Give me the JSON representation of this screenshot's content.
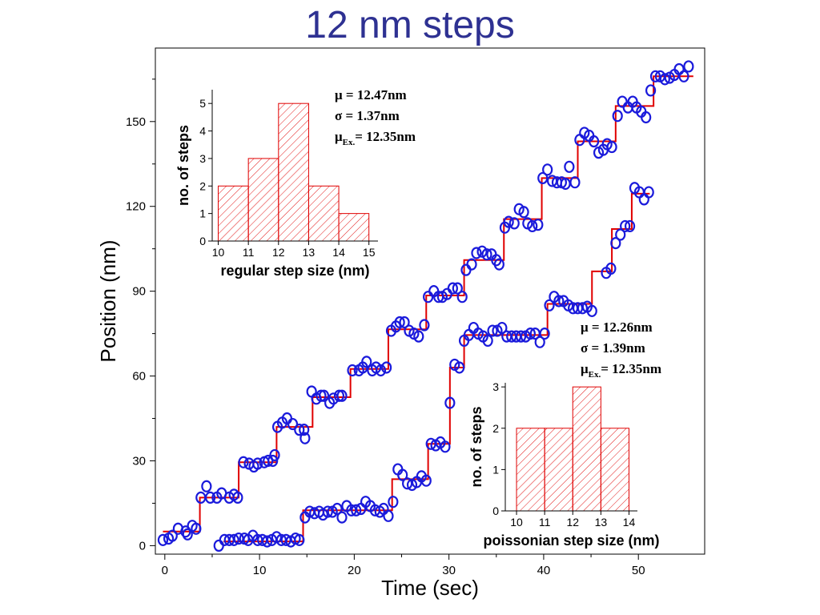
{
  "title": "12 nm steps",
  "main_chart": {
    "type": "scatter",
    "xlabel": "Time (sec)",
    "ylabel": "Position (nm)",
    "xlim": [
      -1,
      57
    ],
    "ylim": [
      -3,
      176
    ],
    "xticks": [
      0,
      10,
      20,
      30,
      40,
      50
    ],
    "yticks": [
      0,
      30,
      60,
      90,
      120,
      150
    ],
    "marker_color": "#1a1adb",
    "fit_color": "#e00000"
  },
  "chart_data": [
    {
      "type": "scatter",
      "xlabel": "Time (sec)",
      "ylabel": "Position (nm)",
      "series": [
        {
          "name": "regular",
          "points": [
            [
              -0.2,
              2
            ],
            [
              0.4,
              2.5
            ],
            [
              0.8,
              3.5
            ],
            [
              1.4,
              6
            ],
            [
              2.2,
              5
            ],
            [
              2.4,
              4
            ],
            [
              2.9,
              7
            ],
            [
              3.3,
              6
            ],
            [
              3.8,
              17
            ],
            [
              4.4,
              21
            ],
            [
              4.8,
              17
            ],
            [
              5.5,
              17
            ],
            [
              6,
              18.5
            ],
            [
              6.8,
              17
            ],
            [
              7.3,
              18
            ],
            [
              7.7,
              17
            ],
            [
              8.3,
              29.5
            ],
            [
              8.9,
              29
            ],
            [
              9.4,
              28
            ],
            [
              9.8,
              29
            ],
            [
              10.5,
              29.5
            ],
            [
              10.9,
              30
            ],
            [
              11.4,
              30
            ],
            [
              11.6,
              32
            ],
            [
              11.9,
              42
            ],
            [
              12.4,
              43.5
            ],
            [
              12.9,
              45
            ],
            [
              13.5,
              43
            ],
            [
              14.2,
              41
            ],
            [
              14.7,
              41
            ],
            [
              14.8,
              38
            ],
            [
              15.5,
              54.5
            ],
            [
              16,
              52
            ],
            [
              16.5,
              53
            ],
            [
              16.8,
              53
            ],
            [
              17.4,
              50.5
            ],
            [
              17.8,
              52
            ],
            [
              18.4,
              53
            ],
            [
              18.7,
              53
            ],
            [
              19.8,
              62
            ],
            [
              20.5,
              62
            ],
            [
              20.9,
              63
            ],
            [
              21.3,
              65
            ],
            [
              21.9,
              62
            ],
            [
              22.3,
              63
            ],
            [
              22.8,
              62
            ],
            [
              23.4,
              63
            ],
            [
              23.9,
              76
            ],
            [
              24.4,
              77.5
            ],
            [
              24.8,
              79
            ],
            [
              25.3,
              79
            ],
            [
              25.8,
              76
            ],
            [
              26.3,
              75
            ],
            [
              26.8,
              74
            ],
            [
              27.4,
              78
            ],
            [
              27.8,
              88
            ],
            [
              28.4,
              90
            ],
            [
              28.9,
              88
            ],
            [
              29.3,
              88
            ],
            [
              29.8,
              89
            ],
            [
              30.4,
              91
            ],
            [
              30.9,
              91
            ],
            [
              31.4,
              88
            ],
            [
              31.8,
              97.5
            ],
            [
              32.4,
              99.5
            ],
            [
              32.9,
              103.5
            ],
            [
              33.5,
              104
            ],
            [
              34,
              103
            ],
            [
              34.5,
              103
            ],
            [
              35,
              101
            ],
            [
              35.3,
              99.5
            ],
            [
              35.9,
              112.5
            ],
            [
              36.3,
              114.5
            ],
            [
              36.9,
              114
            ],
            [
              37.4,
              119
            ],
            [
              37.9,
              118
            ],
            [
              38.3,
              114
            ],
            [
              38.8,
              113
            ],
            [
              39.4,
              113.5
            ],
            [
              39.9,
              130
            ],
            [
              40.4,
              133
            ],
            [
              40.9,
              129
            ],
            [
              41.4,
              128.5
            ],
            [
              41.9,
              128.5
            ],
            [
              42.3,
              128
            ],
            [
              42.7,
              134
            ],
            [
              43.3,
              128.5
            ],
            [
              43.8,
              143.5
            ],
            [
              44.3,
              146
            ],
            [
              44.8,
              145
            ],
            [
              45.3,
              143
            ],
            [
              45.8,
              139
            ],
            [
              46.3,
              140
            ],
            [
              46.7,
              142
            ],
            [
              47.2,
              141
            ],
            [
              47.8,
              152
            ],
            [
              48.3,
              157
            ],
            [
              48.9,
              155
            ],
            [
              49.4,
              157
            ],
            [
              49.8,
              155
            ],
            [
              50.3,
              153.5
            ],
            [
              50.8,
              151.5
            ],
            [
              51.3,
              161
            ],
            [
              51.8,
              166
            ],
            [
              52.3,
              166
            ],
            [
              52.8,
              165
            ],
            [
              53.3,
              165.5
            ],
            [
              53.8,
              166.5
            ],
            [
              54.3,
              168.5
            ],
            [
              54.8,
              166
            ],
            [
              55.3,
              169.5
            ]
          ]
        },
        {
          "name": "poissonian",
          "points": [
            [
              5.7,
              0
            ],
            [
              6.3,
              2
            ],
            [
              6.8,
              2
            ],
            [
              7.3,
              2
            ],
            [
              7.8,
              2.5
            ],
            [
              8.4,
              2.5
            ],
            [
              8.8,
              2
            ],
            [
              9.3,
              3.5
            ],
            [
              9.8,
              2
            ],
            [
              10.3,
              2
            ],
            [
              10.8,
              1.5
            ],
            [
              11.3,
              2
            ],
            [
              11.8,
              3
            ],
            [
              12.3,
              2
            ],
            [
              12.8,
              2
            ],
            [
              13.3,
              1.5
            ],
            [
              13.8,
              2.5
            ],
            [
              14.2,
              2
            ],
            [
              14.8,
              10
            ],
            [
              15.3,
              12
            ],
            [
              15.8,
              11.5
            ],
            [
              16.3,
              12
            ],
            [
              16.7,
              11
            ],
            [
              17.2,
              12
            ],
            [
              17.7,
              12
            ],
            [
              18.2,
              13
            ],
            [
              18.7,
              10
            ],
            [
              19.2,
              14
            ],
            [
              19.7,
              12.5
            ],
            [
              20.2,
              12.5
            ],
            [
              20.7,
              13
            ],
            [
              21.2,
              15.5
            ],
            [
              21.7,
              14
            ],
            [
              22.2,
              12.5
            ],
            [
              22.7,
              12
            ],
            [
              23.1,
              13
            ],
            [
              23.6,
              10.5
            ],
            [
              24.1,
              15.5
            ],
            [
              24.6,
              27
            ],
            [
              25.1,
              25
            ],
            [
              25.6,
              22
            ],
            [
              26.1,
              21.5
            ],
            [
              26.6,
              22.5
            ],
            [
              27.1,
              24.5
            ],
            [
              27.6,
              23
            ],
            [
              28.1,
              36
            ],
            [
              28.6,
              35.5
            ],
            [
              29.1,
              36.5
            ],
            [
              29.6,
              35
            ],
            [
              30.1,
              50.5
            ],
            [
              30.6,
              64
            ],
            [
              31.1,
              63
            ],
            [
              31.6,
              72.5
            ],
            [
              32.1,
              74.5
            ],
            [
              32.6,
              77
            ],
            [
              33.1,
              75
            ],
            [
              33.6,
              74
            ],
            [
              34.1,
              72.5
            ],
            [
              34.6,
              76
            ],
            [
              35.1,
              76
            ],
            [
              35.6,
              77
            ],
            [
              36.1,
              74
            ],
            [
              36.6,
              74
            ],
            [
              37.1,
              74
            ],
            [
              37.6,
              74
            ],
            [
              38.1,
              74
            ],
            [
              38.6,
              75
            ],
            [
              39.1,
              75
            ],
            [
              39.6,
              72
            ],
            [
              40.1,
              75
            ],
            [
              40.6,
              85
            ],
            [
              41.1,
              88
            ],
            [
              41.6,
              86.5
            ],
            [
              42.1,
              86.5
            ],
            [
              42.6,
              85
            ],
            [
              43.1,
              84
            ],
            [
              43.6,
              84
            ],
            [
              44.1,
              84
            ],
            [
              44.6,
              84.5
            ],
            [
              45.1,
              83
            ],
            [
              46.6,
              96.5
            ],
            [
              47.1,
              98
            ],
            [
              47.6,
              107
            ],
            [
              48.1,
              110
            ],
            [
              48.6,
              113
            ],
            [
              49.1,
              113
            ],
            [
              49.6,
              126.5
            ],
            [
              50.1,
              125
            ],
            [
              50.6,
              122.5
            ],
            [
              51.1,
              125
            ]
          ]
        },
        {
          "name": "regular-fit",
          "steps": [
            [
              -0.2,
              5
            ],
            [
              3.7,
              5
            ],
            [
              3.7,
              17
            ],
            [
              7.8,
              17
            ],
            [
              7.8,
              29.5
            ],
            [
              11.8,
              29.5
            ],
            [
              11.8,
              42
            ],
            [
              15.6,
              42
            ],
            [
              15.6,
              52.5
            ],
            [
              19.6,
              52.5
            ],
            [
              19.6,
              62.5
            ],
            [
              23.6,
              62.5
            ],
            [
              23.6,
              76.5
            ],
            [
              27.6,
              76.5
            ],
            [
              27.6,
              88.5
            ],
            [
              31.6,
              88.5
            ],
            [
              31.6,
              101
            ],
            [
              35.8,
              101
            ],
            [
              35.8,
              115.5
            ],
            [
              39.8,
              115.5
            ],
            [
              39.8,
              130
            ],
            [
              43.6,
              130
            ],
            [
              43.6,
              143
            ],
            [
              47.6,
              143
            ],
            [
              47.6,
              155.5
            ],
            [
              51.6,
              155.5
            ],
            [
              51.6,
              166
            ],
            [
              55.8,
              166
            ]
          ]
        },
        {
          "name": "poissonian-fit",
          "steps": [
            [
              6.2,
              1.5
            ],
            [
              14.6,
              1.5
            ],
            [
              14.6,
              12.5
            ],
            [
              24,
              12.5
            ],
            [
              24,
              23.5
            ],
            [
              27.8,
              23.5
            ],
            [
              27.8,
              36
            ],
            [
              30.1,
              36
            ],
            [
              30.1,
              63
            ],
            [
              31.6,
              63
            ],
            [
              31.6,
              74.5
            ],
            [
              40.4,
              74.5
            ],
            [
              40.4,
              85.5
            ],
            [
              45.1,
              85.5
            ],
            [
              45.1,
              97
            ],
            [
              47.2,
              97
            ],
            [
              47.2,
              112
            ],
            [
              49.3,
              112
            ],
            [
              49.3,
              124.5
            ],
            [
              51.2,
              124.5
            ]
          ]
        }
      ]
    },
    {
      "type": "bar",
      "xlabel": "regular step size (nm)",
      "ylabel": "no. of steps",
      "bins": [
        [
          10,
          11
        ],
        [
          11,
          12
        ],
        [
          12,
          13
        ],
        [
          13,
          14
        ],
        [
          14,
          15
        ]
      ],
      "values": [
        2,
        3,
        5,
        2,
        1
      ],
      "xlim": [
        9.8,
        15.3
      ],
      "ylim": [
        0,
        5.5
      ],
      "xticks": [
        10,
        11,
        12,
        13,
        14,
        15
      ],
      "yticks": [
        0,
        1,
        2,
        3,
        4,
        5
      ],
      "stats": {
        "mu": "= 12.47nm",
        "sigma": "= 1.37nm",
        "mu_ex_sub": "Ex.",
        "mu_ex": "= 12.35nm"
      }
    },
    {
      "type": "bar",
      "xlabel": "poissonian step size (nm)",
      "ylabel": "no. of steps",
      "bins": [
        [
          10,
          11
        ],
        [
          11,
          12
        ],
        [
          12,
          13
        ],
        [
          13,
          14
        ]
      ],
      "values": [
        2,
        2,
        3,
        2
      ],
      "xlim": [
        9.6,
        14.3
      ],
      "ylim": [
        0,
        3.1
      ],
      "xticks": [
        10,
        11,
        12,
        13,
        14
      ],
      "yticks": [
        0,
        1,
        2,
        3
      ],
      "stats": {
        "mu": "= 12.26nm",
        "sigma": "= 1.39nm",
        "mu_ex_sub": "Ex.",
        "mu_ex": "= 12.35nm"
      }
    }
  ]
}
